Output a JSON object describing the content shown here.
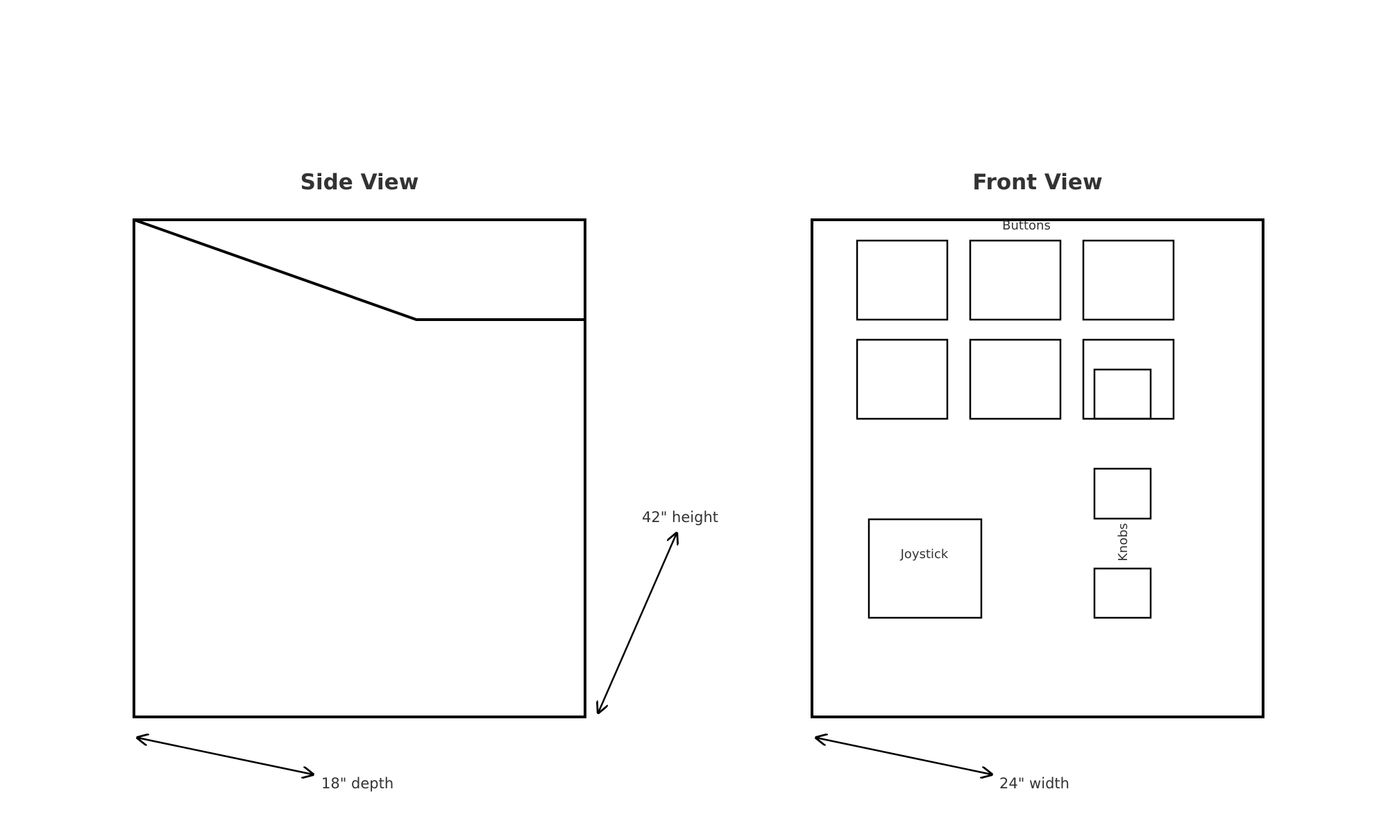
{
  "side_view": {
    "title": "Side View",
    "depth_label": "18\" depth",
    "height_label": "42\" height"
  },
  "front_view": {
    "title": "Front View",
    "width_label": "24\" width",
    "buttons_label": "Buttons",
    "joystick_label": "Joystick",
    "knobs_label": "Knobs"
  }
}
